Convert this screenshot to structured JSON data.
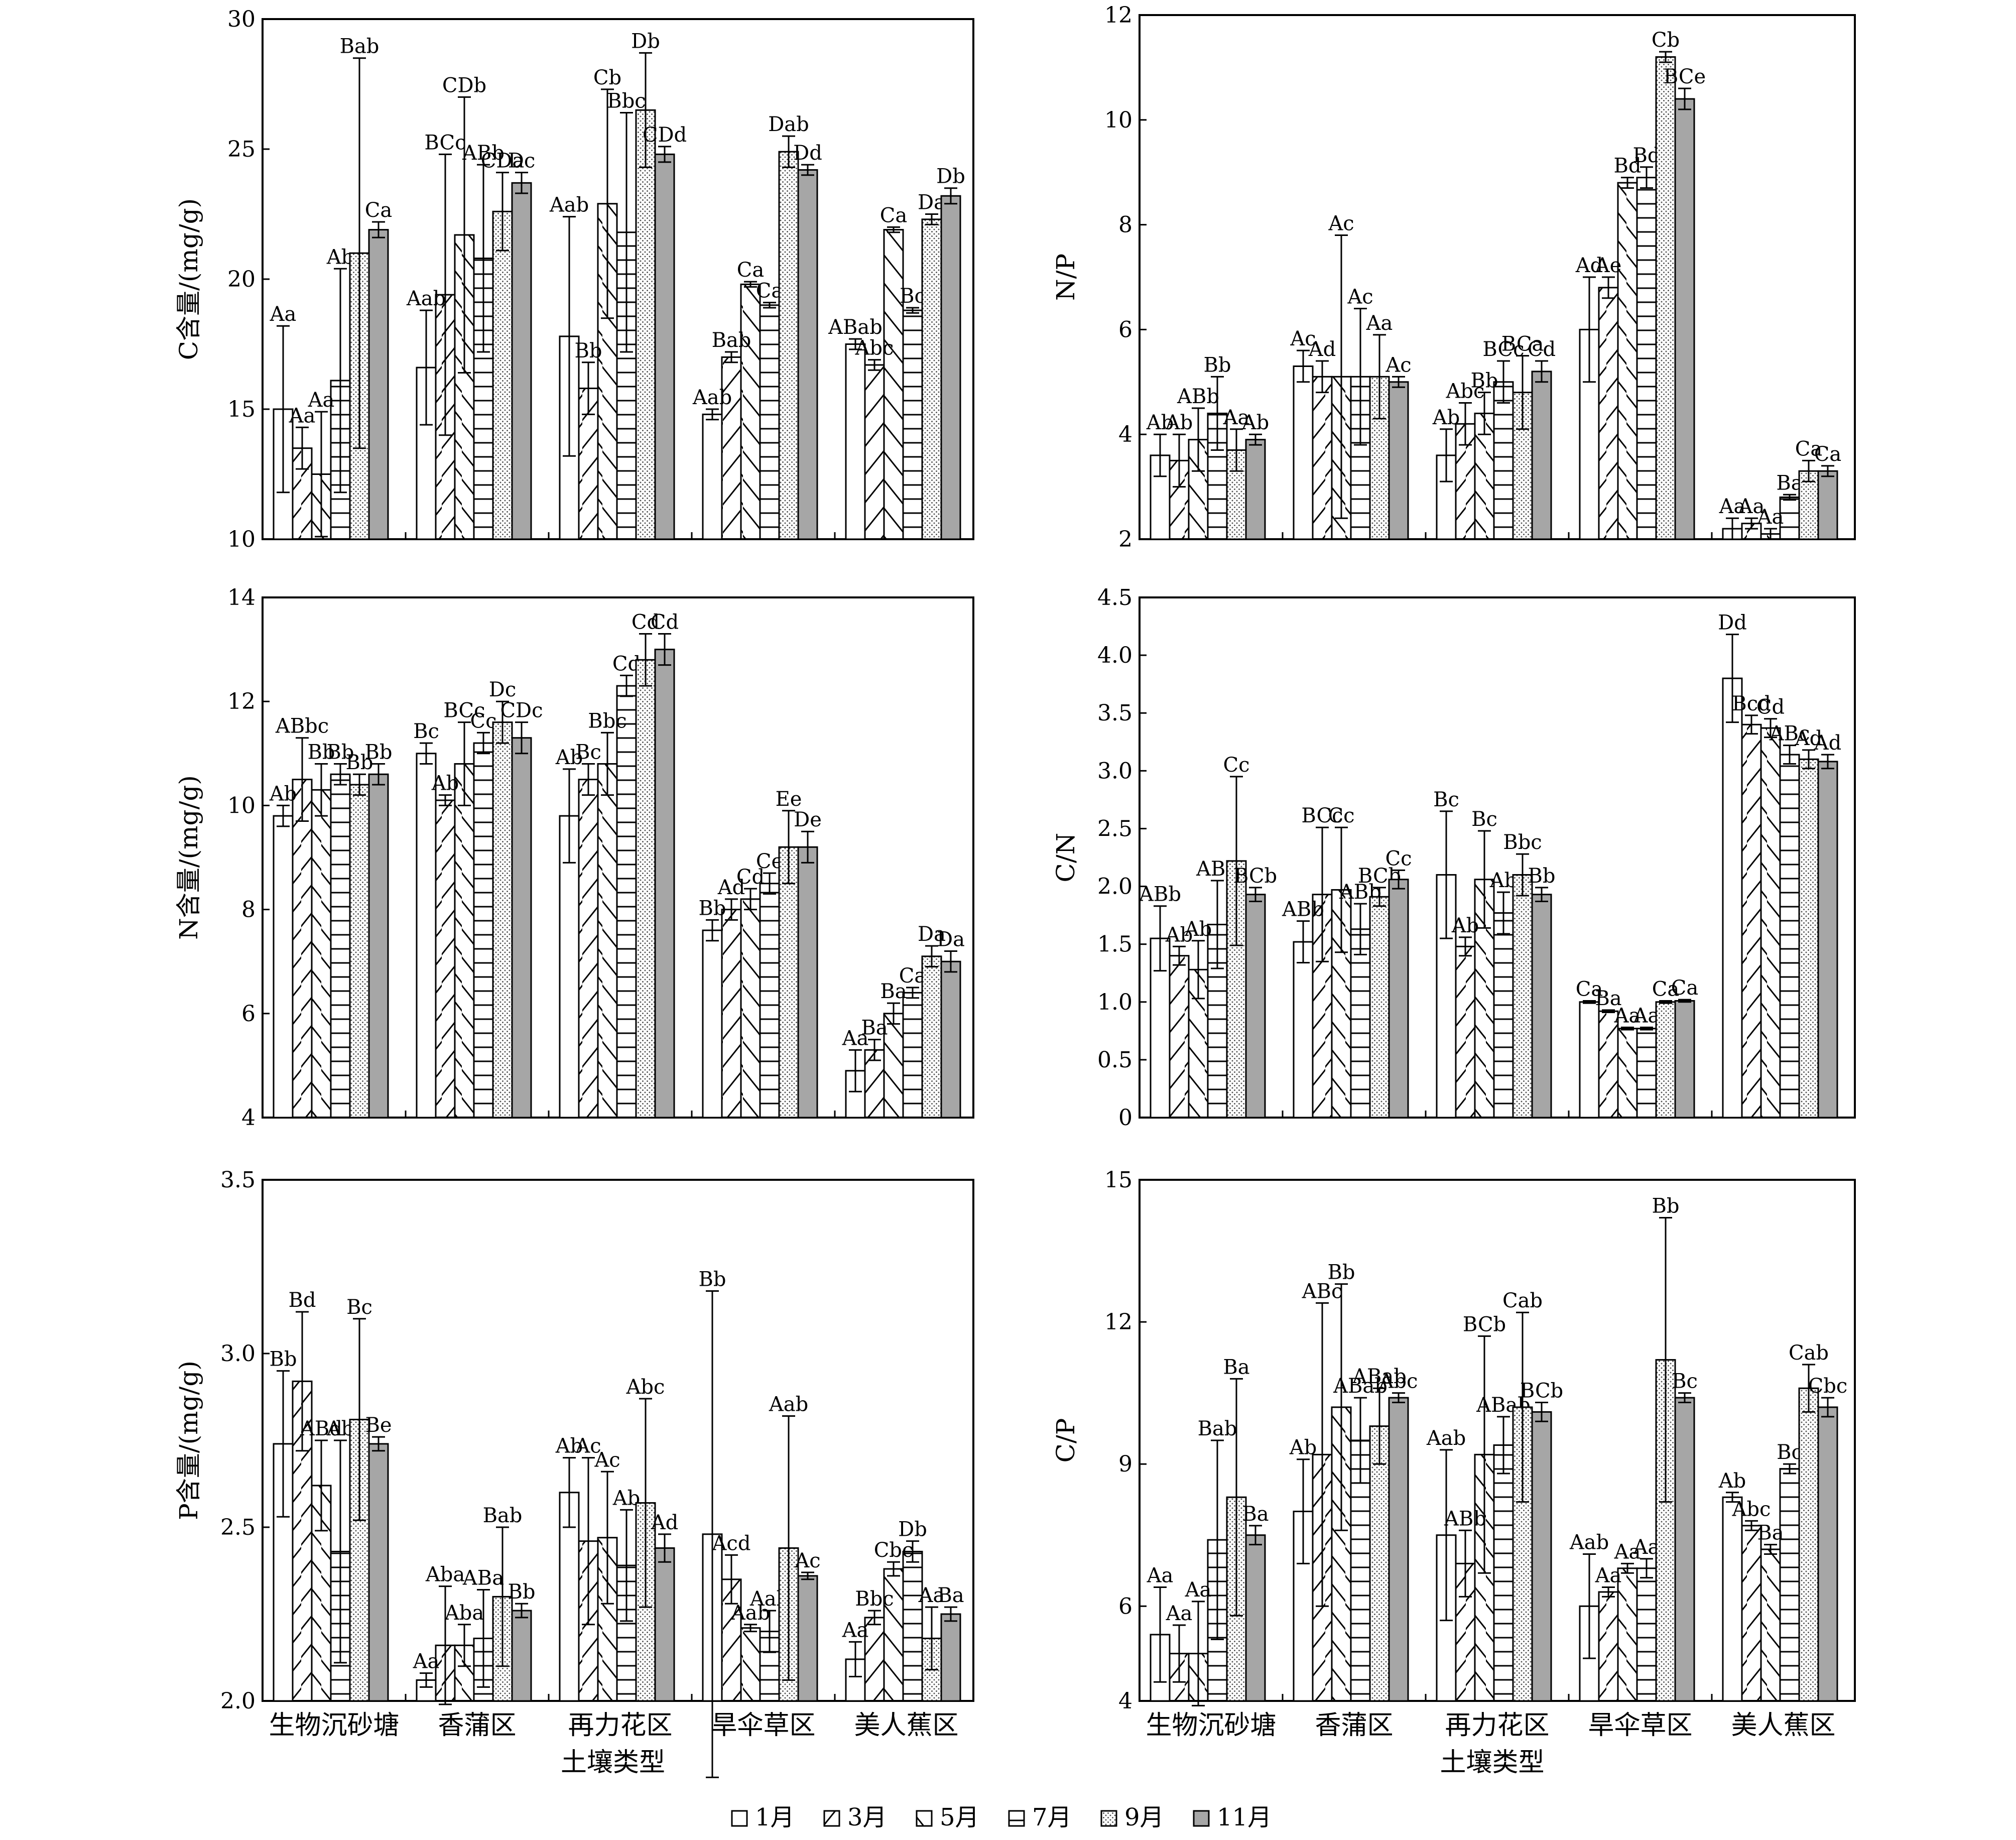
{
  "legend": {
    "items": [
      {
        "label": "1月",
        "pattern": "blank"
      },
      {
        "label": "3月",
        "pattern": "forward-diagonal"
      },
      {
        "label": "5月",
        "pattern": "back-diagonal"
      },
      {
        "label": "7月",
        "pattern": "horizontal"
      },
      {
        "label": "9月",
        "pattern": "dots"
      },
      {
        "label": "11月",
        "pattern": "gray"
      }
    ]
  },
  "colors": {
    "axis": "#000000",
    "fill_gray": "#a6a6a6",
    "background": "#ffffff"
  },
  "chart_data": [
    {
      "type": "bar",
      "panel": "C",
      "ylabel": "C含量/(mg/g)",
      "xlabel": "",
      "ylim": [
        10,
        30
      ],
      "yticks": [
        10,
        15,
        20,
        25,
        30
      ],
      "categories": [
        "生物沉砂塘",
        "香蒲区",
        "再力花区",
        "旱伞草区",
        "美人蕉区"
      ],
      "series": [
        {
          "name": "1月",
          "values": [
            15.0,
            16.6,
            17.8,
            14.8,
            17.5
          ],
          "errors": [
            3.2,
            2.2,
            4.6,
            0.2,
            0.2
          ],
          "letters": [
            "Aa",
            "Aab",
            "Aab",
            "Aab",
            "ABab"
          ]
        },
        {
          "name": "3月",
          "values": [
            13.5,
            19.4,
            15.8,
            17.0,
            16.7
          ],
          "errors": [
            0.8,
            5.4,
            1.0,
            0.2,
            0.2
          ],
          "letters": [
            "Aa",
            "BCc",
            "Bb",
            "Bab",
            "Abc"
          ]
        },
        {
          "name": "5月",
          "values": [
            12.5,
            21.7,
            22.9,
            19.8,
            21.9
          ],
          "errors": [
            2.4,
            5.3,
            4.4,
            0.1,
            0.1
          ],
          "letters": [
            "Aa",
            "CDb",
            "Cb",
            "Ca",
            "Ca"
          ]
        },
        {
          "name": "7月",
          "values": [
            16.1,
            20.8,
            21.8,
            19.0,
            18.8
          ],
          "errors": [
            4.3,
            3.6,
            4.6,
            0.1,
            0.1
          ],
          "letters": [
            "Ab",
            "ABb",
            "Bbc",
            "Ca",
            "Bc"
          ]
        },
        {
          "name": "9月",
          "values": [
            21.0,
            22.6,
            26.5,
            24.9,
            22.3
          ],
          "errors": [
            7.5,
            1.5,
            2.2,
            0.6,
            0.2
          ],
          "letters": [
            "Bab",
            "CDa",
            "Db",
            "Dab",
            "Da"
          ]
        },
        {
          "name": "11月",
          "values": [
            21.9,
            23.7,
            24.8,
            24.2,
            23.2
          ],
          "errors": [
            0.3,
            0.4,
            0.3,
            0.2,
            0.3
          ],
          "letters": [
            "Ca",
            "Dc",
            "CDd",
            "Dd",
            "Db"
          ]
        }
      ]
    },
    {
      "type": "bar",
      "panel": "N/P",
      "ylabel": "N/P",
      "xlabel": "",
      "ylim": [
        2,
        12
      ],
      "yticks": [
        2,
        4,
        6,
        8,
        10,
        12
      ],
      "categories": [
        "生物沉砂塘",
        "香蒲区",
        "再力花区",
        "旱伞草区",
        "美人蕉区"
      ],
      "series": [
        {
          "name": "1月",
          "values": [
            3.6,
            5.3,
            3.6,
            6.0,
            2.2
          ],
          "errors": [
            0.4,
            0.3,
            0.5,
            1.0,
            0.2
          ],
          "letters": [
            "Ab",
            "Ac",
            "Ab",
            "Ad",
            "Aa"
          ]
        },
        {
          "name": "3月",
          "values": [
            3.5,
            5.1,
            4.2,
            6.8,
            2.3
          ],
          "errors": [
            0.5,
            0.3,
            0.4,
            0.2,
            0.1
          ],
          "letters": [
            "Ab",
            "Ad",
            "Abc",
            "Ae",
            "Aa"
          ]
        },
        {
          "name": "5月",
          "values": [
            3.9,
            5.1,
            4.4,
            8.8,
            2.1
          ],
          "errors": [
            0.6,
            2.7,
            0.4,
            0.1,
            0.1
          ],
          "letters": [
            "ABb",
            "Ac",
            "Bb",
            "Bd",
            "Aa"
          ]
        },
        {
          "name": "7月",
          "values": [
            4.4,
            5.1,
            5.0,
            8.9,
            2.8
          ],
          "errors": [
            0.7,
            1.3,
            0.4,
            0.2,
            0.05
          ],
          "letters": [
            "Bb",
            "Ac",
            "BCc",
            "Bd",
            "Ba"
          ]
        },
        {
          "name": "9月",
          "values": [
            3.7,
            5.1,
            4.8,
            11.2,
            3.3
          ],
          "errors": [
            0.4,
            0.8,
            0.7,
            0.1,
            0.2
          ],
          "letters": [
            "Aa",
            "Aa",
            "BCa",
            "Cb",
            "Ca"
          ]
        },
        {
          "name": "11月",
          "values": [
            3.9,
            5.0,
            5.2,
            10.4,
            3.3
          ],
          "errors": [
            0.1,
            0.1,
            0.2,
            0.2,
            0.1
          ],
          "letters": [
            "Ab",
            "Ac",
            "Cd",
            "BCe",
            "Ca"
          ]
        }
      ]
    },
    {
      "type": "bar",
      "panel": "N",
      "ylabel": "N含量/(mg/g)",
      "xlabel": "",
      "ylim": [
        4,
        14
      ],
      "yticks": [
        4,
        6,
        8,
        10,
        12,
        14
      ],
      "categories": [
        "生物沉砂塘",
        "香蒲区",
        "再力花区",
        "旱伞草区",
        "美人蕉区"
      ],
      "series": [
        {
          "name": "1月",
          "values": [
            9.8,
            11.0,
            9.8,
            7.6,
            4.9
          ],
          "errors": [
            0.2,
            0.2,
            0.9,
            0.2,
            0.4
          ],
          "letters": [
            "Ab",
            "Bc",
            "Ab",
            "Bb",
            "Aa"
          ]
        },
        {
          "name": "3月",
          "values": [
            10.5,
            10.1,
            10.5,
            8.0,
            5.3
          ],
          "errors": [
            0.8,
            0.1,
            0.3,
            0.2,
            0.2
          ],
          "letters": [
            "ABbc",
            "Ab",
            "Bc",
            "Ad",
            "Ba"
          ]
        },
        {
          "name": "5月",
          "values": [
            10.3,
            10.8,
            10.8,
            8.2,
            6.0
          ],
          "errors": [
            0.5,
            0.8,
            0.6,
            0.2,
            0.2
          ],
          "letters": [
            "Bb",
            "BCc",
            "Bbc",
            "Cd",
            "Ba"
          ]
        },
        {
          "name": "7月",
          "values": [
            10.6,
            11.2,
            12.3,
            8.5,
            6.4
          ],
          "errors": [
            0.2,
            0.2,
            0.2,
            0.2,
            0.1
          ],
          "letters": [
            "Bb",
            "Cc",
            "Cd",
            "Ce",
            "Ca"
          ]
        },
        {
          "name": "9月",
          "values": [
            10.4,
            11.6,
            12.8,
            9.2,
            7.1
          ],
          "errors": [
            0.2,
            0.4,
            0.5,
            0.7,
            0.2
          ],
          "letters": [
            "Bb",
            "Dc",
            "Cd",
            "Ee",
            "Da"
          ]
        },
        {
          "name": "11月",
          "values": [
            10.6,
            11.3,
            13.0,
            9.2,
            7.0
          ],
          "errors": [
            0.2,
            0.3,
            0.3,
            0.3,
            0.2
          ],
          "letters": [
            "Bb",
            "CDc",
            "Cd",
            "De",
            "Da"
          ]
        }
      ]
    },
    {
      "type": "bar",
      "panel": "C/N",
      "ylabel": "C/N",
      "xlabel": "",
      "ylim": [
        0,
        4.5
      ],
      "yticks": [
        0,
        0.5,
        1.0,
        1.5,
        2.0,
        2.5,
        3.0,
        3.5,
        4.0,
        4.5
      ],
      "categories": [
        "生物沉砂塘",
        "香蒲区",
        "再力花区",
        "旱伞草区",
        "美人蕉区"
      ],
      "series": [
        {
          "name": "1月",
          "values": [
            1.55,
            1.52,
            2.1,
            1.0,
            3.8
          ],
          "errors": [
            0.28,
            0.18,
            0.55,
            0.01,
            0.38
          ],
          "letters": [
            "ABb",
            "ABb",
            "Bc",
            "Ca",
            "Dd"
          ]
        },
        {
          "name": "3月",
          "values": [
            1.4,
            1.93,
            1.48,
            0.92,
            3.4
          ],
          "errors": [
            0.08,
            0.58,
            0.08,
            0.01,
            0.08
          ],
          "letters": [
            "Ab",
            "BCc",
            "Ab",
            "Ba",
            "Bcd"
          ]
        },
        {
          "name": "5月",
          "values": [
            1.28,
            1.97,
            2.06,
            0.77,
            3.37
          ],
          "errors": [
            0.25,
            0.54,
            0.42,
            0.01,
            0.08
          ],
          "letters": [
            "Ab",
            "Cc",
            "Bc",
            "Aa",
            "Cd"
          ]
        },
        {
          "name": "7月",
          "values": [
            1.67,
            1.63,
            1.77,
            0.77,
            3.14
          ],
          "errors": [
            0.38,
            0.22,
            0.18,
            0.01,
            0.08
          ],
          "letters": [
            "ABb",
            "ABb",
            "Ab",
            "Aa",
            "ABc"
          ]
        },
        {
          "name": "9月",
          "values": [
            2.22,
            1.91,
            2.1,
            1.0,
            3.1
          ],
          "errors": [
            0.73,
            0.08,
            0.18,
            0.01,
            0.08
          ],
          "letters": [
            "Cc",
            "BCb",
            "Bbc",
            "Ca",
            "Ad"
          ]
        },
        {
          "name": "11月",
          "values": [
            1.93,
            2.06,
            1.93,
            1.01,
            3.08
          ],
          "errors": [
            0.06,
            0.08,
            0.06,
            0.01,
            0.06
          ],
          "letters": [
            "BCb",
            "Cc",
            "Bb",
            "Ca",
            "Ad"
          ]
        }
      ]
    },
    {
      "type": "bar",
      "panel": "P",
      "ylabel": "P含量/(mg/g)",
      "xlabel": "土壤类型",
      "ylim": [
        2.0,
        3.5
      ],
      "yticks": [
        2.0,
        2.5,
        3.0,
        3.5
      ],
      "categories": [
        "生物沉砂塘",
        "香蒲区",
        "再力花区",
        "旱伞草区",
        "美人蕉区"
      ],
      "series": [
        {
          "name": "1月",
          "values": [
            2.74,
            2.06,
            2.6,
            2.48,
            2.12
          ],
          "errors": [
            0.21,
            0.02,
            0.1,
            0.7,
            0.05
          ],
          "letters": [
            "Bb",
            "Aa",
            "Ab",
            "Bb",
            "Aa"
          ]
        },
        {
          "name": "3月",
          "values": [
            2.92,
            2.16,
            2.46,
            2.35,
            2.24
          ],
          "errors": [
            0.2,
            0.17,
            0.24,
            0.07,
            0.02
          ],
          "letters": [
            "Bd",
            "Aba",
            "Ac",
            "Acd",
            "Bbc"
          ]
        },
        {
          "name": "5月",
          "values": [
            2.62,
            2.16,
            2.47,
            2.21,
            2.38
          ],
          "errors": [
            0.13,
            0.06,
            0.19,
            0.01,
            0.02
          ],
          "letters": [
            "ABd",
            "Aba",
            "Ac",
            "Aab",
            "Cbc"
          ]
        },
        {
          "name": "7月",
          "values": [
            2.43,
            2.18,
            2.39,
            2.2,
            2.43
          ],
          "errors": [
            0.32,
            0.14,
            0.16,
            0.06,
            0.03
          ],
          "letters": [
            "Ab",
            "ABa",
            "Ab",
            "Aab",
            "Db"
          ]
        },
        {
          "name": "9月",
          "values": [
            2.81,
            2.3,
            2.57,
            2.44,
            2.18
          ],
          "errors": [
            0.29,
            0.2,
            0.3,
            0.38,
            0.09
          ],
          "letters": [
            "Bc",
            "Bab",
            "Abc",
            "Aab",
            "Aa"
          ]
        },
        {
          "name": "11月",
          "values": [
            2.74,
            2.26,
            2.44,
            2.36,
            2.25
          ],
          "errors": [
            0.02,
            0.02,
            0.04,
            0.01,
            0.02
          ],
          "letters": [
            "Be",
            "Bb",
            "Ad",
            "Ac",
            "Ba"
          ]
        }
      ]
    },
    {
      "type": "bar",
      "panel": "C/P",
      "ylabel": "C/P",
      "xlabel": "土壤类型",
      "ylim": [
        4,
        15
      ],
      "yticks": [
        4,
        6,
        9,
        12,
        15
      ],
      "categories": [
        "生物沉砂塘",
        "香蒲区",
        "再力花区",
        "旱伞草区",
        "美人蕉区"
      ],
      "series": [
        {
          "name": "1月",
          "values": [
            5.4,
            8.0,
            7.5,
            6.0,
            8.3
          ],
          "errors": [
            1.0,
            1.1,
            1.8,
            1.1,
            0.1
          ],
          "letters": [
            "Aa",
            "Ab",
            "Aab",
            "Aab",
            "Ab"
          ]
        },
        {
          "name": "3月",
          "values": [
            5.0,
            9.2,
            6.9,
            6.3,
            7.7
          ],
          "errors": [
            0.6,
            3.2,
            0.7,
            0.1,
            0.1
          ],
          "letters": [
            "Aa",
            "ABc",
            "ABb",
            "Aa",
            "Abc"
          ]
        },
        {
          "name": "5月",
          "values": [
            5.0,
            10.2,
            9.2,
            6.8,
            7.2
          ],
          "errors": [
            1.1,
            2.6,
            2.5,
            0.1,
            0.1
          ],
          "letters": [
            "Aa",
            "Bb",
            "BCb",
            "Aa",
            "Ba"
          ]
        },
        {
          "name": "7月",
          "values": [
            7.4,
            9.5,
            9.4,
            6.8,
            8.9
          ],
          "errors": [
            2.1,
            0.9,
            0.6,
            0.2,
            0.1
          ],
          "letters": [
            "Bab",
            "ABab",
            "ABab",
            "Aa",
            "Bc"
          ]
        },
        {
          "name": "9月",
          "values": [
            8.3,
            9.8,
            10.2,
            11.2,
            10.6
          ],
          "errors": [
            2.5,
            0.8,
            2.0,
            3.0,
            0.5
          ],
          "letters": [
            "Ba",
            "ABab",
            "Cab",
            "Bb",
            "Cab"
          ]
        },
        {
          "name": "11月",
          "values": [
            7.5,
            10.4,
            10.1,
            10.4,
            10.2
          ],
          "errors": [
            0.2,
            0.1,
            0.2,
            0.1,
            0.2
          ],
          "letters": [
            "Ba",
            "Abc",
            "BCb",
            "Bc",
            "Cbc"
          ]
        }
      ]
    }
  ]
}
